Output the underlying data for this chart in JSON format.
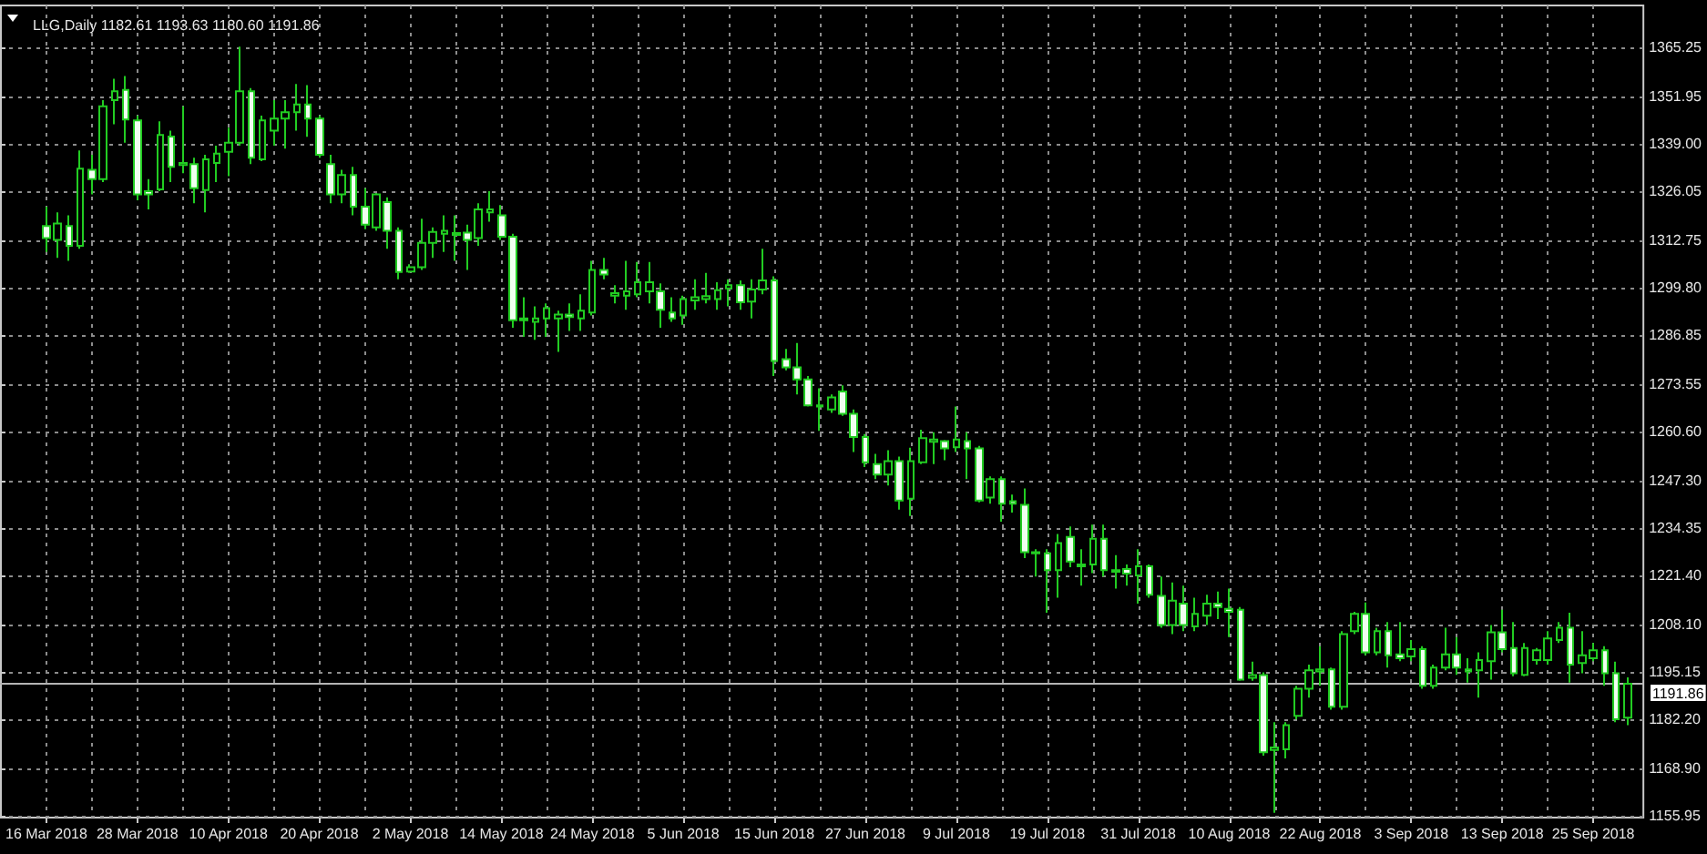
{
  "chart_data": {
    "type": "candlestick",
    "title": "LLG,Daily 1182.61 1193.63 1180.60 1191.86",
    "categories": [
      "16 Mar 2018",
      null,
      null,
      null,
      null,
      null,
      null,
      null,
      "28 Mar 2018",
      null,
      null,
      null,
      null,
      null,
      null,
      null,
      "10 Apr 2018",
      null,
      null,
      null,
      null,
      null,
      null,
      null,
      "20 Apr 2018",
      null,
      null,
      null,
      null,
      null,
      null,
      null,
      "2 May 2018",
      null,
      null,
      null,
      null,
      null,
      null,
      null,
      "14 May 2018",
      null,
      null,
      null,
      null,
      null,
      null,
      null,
      "24 May 2018",
      null,
      null,
      null,
      null,
      null,
      null,
      null,
      "5 Jun 2018",
      null,
      null,
      null,
      null,
      null,
      null,
      null,
      "15 Jun 2018",
      null,
      null,
      null,
      null,
      null,
      null,
      null,
      "27 Jun 2018",
      null,
      null,
      null,
      null,
      null,
      null,
      null,
      "9 Jul 2018",
      null,
      null,
      null,
      null,
      null,
      null,
      null,
      "19 Jul 2018",
      null,
      null,
      null,
      null,
      null,
      null,
      null,
      "31 Jul 2018",
      null,
      null,
      null,
      null,
      null,
      null,
      null,
      "10 Aug 2018",
      null,
      null,
      null,
      null,
      null,
      null,
      null,
      "22 Aug 2018",
      null,
      null,
      null,
      null,
      null,
      null,
      null,
      "3 Sep 2018",
      null,
      null,
      null,
      null,
      null,
      null,
      null,
      "13 Sep 2018",
      null,
      null,
      null,
      null,
      null,
      null,
      null,
      "25 Sep 2018",
      null,
      null,
      null
    ],
    "ohlc": [
      [
        1316.6,
        1321.9,
        1309.5,
        1313.3
      ],
      [
        1312.8,
        1320.3,
        1307.9,
        1317.3
      ],
      [
        1316.6,
        1319.5,
        1307.1,
        1311.2
      ],
      [
        1311.2,
        1337.2,
        1310.4,
        1332.2
      ],
      [
        1331.9,
        1336.0,
        1325.2,
        1329.4
      ],
      [
        1329.4,
        1350.9,
        1328.6,
        1349.2
      ],
      [
        1350.9,
        1356.7,
        1344.3,
        1353.3
      ],
      [
        1353.7,
        1357.5,
        1339.3,
        1345.6
      ],
      [
        1345.4,
        1346.7,
        1323.6,
        1325.2
      ],
      [
        1326.1,
        1329.4,
        1321.1,
        1325.2
      ],
      [
        1326.6,
        1345.1,
        1326.1,
        1341.4
      ],
      [
        1341.0,
        1342.6,
        1328.6,
        1332.7
      ],
      [
        1333.2,
        1349.2,
        1331.0,
        1333.8
      ],
      [
        1333.5,
        1335.2,
        1322.8,
        1326.9
      ],
      [
        1326.4,
        1336.0,
        1320.3,
        1334.8
      ],
      [
        1333.8,
        1338.5,
        1328.6,
        1336.3
      ],
      [
        1336.8,
        1343.4,
        1330.2,
        1339.3
      ],
      [
        1339.3,
        1365.5,
        1338.5,
        1353.3
      ],
      [
        1353.3,
        1354.2,
        1333.5,
        1335.2
      ],
      [
        1334.8,
        1346.7,
        1334.3,
        1345.4
      ],
      [
        1342.6,
        1350.9,
        1338.5,
        1345.9
      ],
      [
        1345.9,
        1350.9,
        1337.7,
        1347.6
      ],
      [
        1347.6,
        1355.3,
        1342.6,
        1349.7
      ],
      [
        1349.7,
        1355.0,
        1340.9,
        1345.9
      ],
      [
        1345.9,
        1346.7,
        1335.2,
        1336.0
      ],
      [
        1333.5,
        1336.0,
        1322.8,
        1325.2
      ],
      [
        1325.2,
        1331.9,
        1322.8,
        1330.5
      ],
      [
        1330.5,
        1332.7,
        1319.5,
        1321.9
      ],
      [
        1321.9,
        1326.9,
        1315.7,
        1317.0
      ],
      [
        1316.2,
        1325.6,
        1315.3,
        1325.2
      ],
      [
        1323.1,
        1324.4,
        1310.4,
        1315.3
      ],
      [
        1315.3,
        1316.2,
        1302.1,
        1304.1
      ],
      [
        1304.2,
        1306.2,
        1303.8,
        1305.4
      ],
      [
        1305.4,
        1318.6,
        1304.6,
        1312.0
      ],
      [
        1312.0,
        1316.2,
        1307.9,
        1315.0
      ],
      [
        1314.5,
        1319.5,
        1309.5,
        1315.3
      ],
      [
        1314.7,
        1319.5,
        1307.1,
        1314.2
      ],
      [
        1314.8,
        1317.0,
        1304.6,
        1312.8
      ],
      [
        1313.3,
        1322.8,
        1311.2,
        1321.1
      ],
      [
        1320.3,
        1326.1,
        1317.8,
        1321.1
      ],
      [
        1319.5,
        1322.3,
        1312.8,
        1313.7
      ],
      [
        1313.7,
        1314.5,
        1288.9,
        1290.9
      ],
      [
        1290.9,
        1297.2,
        1286.4,
        1291.4
      ],
      [
        1290.5,
        1294.7,
        1285.6,
        1291.4
      ],
      [
        1291.4,
        1295.5,
        1286.4,
        1294.2
      ],
      [
        1291.4,
        1293.5,
        1282.3,
        1292.5
      ],
      [
        1292.5,
        1295.5,
        1288.0,
        1291.8
      ],
      [
        1291.4,
        1298.0,
        1288.0,
        1293.5
      ],
      [
        1293.0,
        1307.1,
        1292.2,
        1304.6
      ],
      [
        1304.6,
        1307.9,
        1302.1,
        1303.4
      ],
      [
        1297.6,
        1300.5,
        1295.5,
        1298.3
      ],
      [
        1297.6,
        1307.1,
        1293.8,
        1298.8
      ],
      [
        1298.0,
        1306.8,
        1297.2,
        1301.3
      ],
      [
        1298.8,
        1306.8,
        1295.5,
        1301.3
      ],
      [
        1298.8,
        1301.0,
        1288.9,
        1293.8
      ],
      [
        1293.0,
        1297.2,
        1290.5,
        1291.4
      ],
      [
        1292.2,
        1297.6,
        1289.7,
        1296.7
      ],
      [
        1296.3,
        1302.1,
        1293.8,
        1297.2
      ],
      [
        1296.7,
        1303.8,
        1295.5,
        1297.5
      ],
      [
        1296.7,
        1301.3,
        1293.8,
        1299.1
      ],
      [
        1299.6,
        1302.1,
        1294.7,
        1300.5
      ],
      [
        1300.5,
        1301.8,
        1293.8,
        1295.8
      ],
      [
        1296.0,
        1302.1,
        1291.4,
        1299.3
      ],
      [
        1299.3,
        1310.4,
        1298.0,
        1301.8
      ],
      [
        1301.8,
        1302.9,
        1275.7,
        1279.8
      ],
      [
        1280.3,
        1283.1,
        1277.3,
        1278.1
      ],
      [
        1278.1,
        1284.7,
        1270.7,
        1274.8
      ],
      [
        1274.8,
        1275.7,
        1267.4,
        1267.7
      ],
      [
        1267.7,
        1272.4,
        1260.8,
        1267.4
      ],
      [
        1266.6,
        1270.7,
        1265.7,
        1269.9
      ],
      [
        1271.5,
        1273.2,
        1264.9,
        1265.4
      ],
      [
        1265.4,
        1266.6,
        1255.0,
        1259.1
      ],
      [
        1259.1,
        1259.9,
        1250.9,
        1252.2
      ],
      [
        1251.7,
        1254.5,
        1247.6,
        1248.9
      ],
      [
        1248.9,
        1255.5,
        1245.9,
        1252.5
      ],
      [
        1252.5,
        1253.8,
        1239.3,
        1241.8
      ],
      [
        1242.3,
        1256.2,
        1237.6,
        1252.5
      ],
      [
        1252.2,
        1261.1,
        1251.7,
        1258.8
      ],
      [
        1257.8,
        1260.4,
        1251.7,
        1258.4
      ],
      [
        1258.0,
        1258.3,
        1252.8,
        1256.0
      ],
      [
        1256.3,
        1267.4,
        1255.0,
        1258.4
      ],
      [
        1258.0,
        1260.4,
        1247.6,
        1256.0
      ],
      [
        1256.0,
        1256.7,
        1241.3,
        1241.8
      ],
      [
        1242.6,
        1248.4,
        1240.9,
        1247.6
      ],
      [
        1247.6,
        1248.4,
        1236.0,
        1240.9
      ],
      [
        1241.6,
        1243.4,
        1238.5,
        1240.9
      ],
      [
        1240.6,
        1245.1,
        1226.1,
        1227.7
      ],
      [
        1227.7,
        1228.5,
        1221.1,
        1227.4
      ],
      [
        1227.4,
        1228.5,
        1211.2,
        1222.8
      ],
      [
        1222.8,
        1232.7,
        1215.3,
        1230.2
      ],
      [
        1231.9,
        1234.7,
        1223.6,
        1225.2
      ],
      [
        1224.4,
        1228.5,
        1218.6,
        1223.9
      ],
      [
        1224.4,
        1235.2,
        1222.0,
        1231.4
      ],
      [
        1231.4,
        1235.2,
        1221.1,
        1222.8
      ],
      [
        1222.8,
        1226.9,
        1217.8,
        1222.4
      ],
      [
        1223.1,
        1224.4,
        1218.6,
        1221.9
      ],
      [
        1221.4,
        1228.5,
        1213.7,
        1223.9
      ],
      [
        1223.9,
        1224.4,
        1215.3,
        1216.1
      ],
      [
        1215.8,
        1221.1,
        1207.1,
        1207.9
      ],
      [
        1207.9,
        1219.5,
        1205.4,
        1214.5
      ],
      [
        1213.7,
        1218.6,
        1206.2,
        1207.9
      ],
      [
        1207.5,
        1215.3,
        1206.2,
        1210.9
      ],
      [
        1210.4,
        1216.1,
        1207.9,
        1213.7
      ],
      [
        1213.7,
        1217.0,
        1209.5,
        1212.8
      ],
      [
        1212.3,
        1217.8,
        1204.6,
        1211.5
      ],
      [
        1212.0,
        1212.8,
        1192.7,
        1193.0
      ],
      [
        1193.5,
        1197.9,
        1192.7,
        1194.2
      ],
      [
        1194.2,
        1195.0,
        1172.3,
        1173.2
      ],
      [
        1173.8,
        1181.4,
        1156.7,
        1174.5
      ],
      [
        1174.0,
        1181.4,
        1171.5,
        1180.6
      ],
      [
        1183.1,
        1191.3,
        1182.2,
        1190.5
      ],
      [
        1190.5,
        1197.1,
        1188.1,
        1195.5
      ],
      [
        1195.2,
        1202.1,
        1191.3,
        1195.8
      ],
      [
        1195.8,
        1196.3,
        1184.8,
        1185.6
      ],
      [
        1185.6,
        1206.2,
        1184.8,
        1205.4
      ],
      [
        1206.2,
        1211.5,
        1205.4,
        1210.9
      ],
      [
        1210.9,
        1214.0,
        1199.6,
        1200.4
      ],
      [
        1200.4,
        1207.1,
        1199.6,
        1206.2
      ],
      [
        1206.2,
        1208.7,
        1196.3,
        1199.6
      ],
      [
        1199.9,
        1208.7,
        1198.0,
        1198.8
      ],
      [
        1199.3,
        1203.8,
        1198.0,
        1201.3
      ],
      [
        1201.3,
        1202.1,
        1190.5,
        1191.3
      ],
      [
        1191.3,
        1197.1,
        1190.5,
        1196.3
      ],
      [
        1196.3,
        1207.1,
        1195.5,
        1199.9
      ],
      [
        1199.9,
        1204.6,
        1194.3,
        1196.3
      ],
      [
        1195.8,
        1198.8,
        1192.2,
        1195.2
      ],
      [
        1195.5,
        1200.4,
        1188.1,
        1198.3
      ],
      [
        1198.0,
        1207.9,
        1193.0,
        1205.9
      ],
      [
        1205.9,
        1212.0,
        1200.4,
        1201.3
      ],
      [
        1201.6,
        1208.7,
        1193.9,
        1194.7
      ],
      [
        1194.3,
        1203.0,
        1193.9,
        1201.6
      ],
      [
        1198.3,
        1201.6,
        1197.1,
        1201.0
      ],
      [
        1198.3,
        1206.2,
        1197.1,
        1204.2
      ],
      [
        1203.8,
        1208.7,
        1203.0,
        1207.1
      ],
      [
        1207.1,
        1211.2,
        1192.2,
        1197.1
      ],
      [
        1197.5,
        1206.2,
        1194.7,
        1199.6
      ],
      [
        1198.8,
        1203.0,
        1198.0,
        1201.0
      ],
      [
        1201.0,
        1202.1,
        1191.3,
        1194.7
      ],
      [
        1194.7,
        1197.9,
        1181.4,
        1182.2
      ],
      [
        1182.61,
        1193.63,
        1180.6,
        1191.86
      ]
    ],
    "color": "#22cc22",
    "ylim": [
      1155.4,
      1376.7
    ],
    "yticks": [
      1155.95,
      {
        "value": 1168.9,
        "label": "1168.90"
      },
      {
        "value": 1182.2,
        "label": "1182.20"
      },
      1195.15,
      {
        "value": 1208.1,
        "label": "1208.10"
      },
      {
        "value": 1221.4,
        "label": "1221.40"
      },
      1234.35,
      {
        "value": 1247.3,
        "label": "1247.30"
      },
      {
        "value": 1260.6,
        "label": "1260.60"
      },
      1273.55,
      1286.85,
      {
        "value": 1299.8,
        "label": "1299.80"
      },
      1312.75,
      1326.05,
      {
        "value": 1339,
        "label": "1339.00"
      },
      1351.95,
      1365.25
    ],
    "grid": true,
    "ref_lines": [
      {
        "axis": "y",
        "value": 1191.86,
        "label": "1191.86",
        "color": "#b4b4b4"
      }
    ]
  }
}
